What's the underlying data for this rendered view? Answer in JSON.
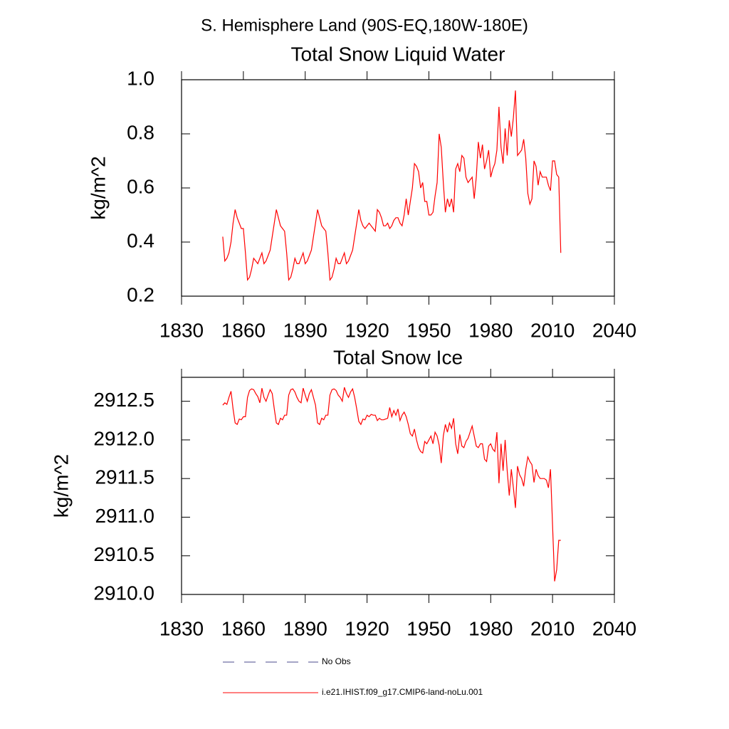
{
  "title": "S. Hemisphere Land (90S-EQ,180W-180E)",
  "chart_data": [
    {
      "type": "line",
      "title": "Total Snow Liquid Water",
      "ylabel": "kg/m^2",
      "color": "#ff0000",
      "x": [
        1850,
        1851,
        1852,
        1853,
        1854,
        1855,
        1856,
        1857,
        1858,
        1859,
        1860,
        1861,
        1862,
        1863,
        1864,
        1865,
        1866,
        1867,
        1868,
        1869,
        1870,
        1871,
        1872,
        1873,
        1874,
        1875,
        1876,
        1877,
        1878,
        1879,
        1880,
        1881,
        1882,
        1883,
        1884,
        1885,
        1886,
        1887,
        1888,
        1889,
        1890,
        1891,
        1892,
        1893,
        1894,
        1895,
        1896,
        1897,
        1898,
        1899,
        1900,
        1901,
        1902,
        1903,
        1904,
        1905,
        1906,
        1907,
        1908,
        1909,
        1910,
        1911,
        1912,
        1913,
        1914,
        1915,
        1916,
        1917,
        1918,
        1919,
        1920,
        1921,
        1922,
        1923,
        1924,
        1925,
        1926,
        1927,
        1928,
        1929,
        1930,
        1931,
        1932,
        1933,
        1934,
        1935,
        1936,
        1937,
        1938,
        1939,
        1940,
        1941,
        1942,
        1943,
        1944,
        1945,
        1946,
        1947,
        1948,
        1949,
        1950,
        1951,
        1952,
        1953,
        1954,
        1955,
        1956,
        1957,
        1958,
        1959,
        1960,
        1961,
        1962,
        1963,
        1964,
        1965,
        1966,
        1967,
        1968,
        1969,
        1970,
        1971,
        1972,
        1973,
        1974,
        1975,
        1976,
        1977,
        1978,
        1979,
        1980,
        1981,
        1982,
        1983,
        1984,
        1985,
        1986,
        1987,
        1988,
        1989,
        1990,
        1991,
        1992,
        1993,
        1994,
        1995,
        1996,
        1997,
        1998,
        1999,
        2000,
        2001,
        2002,
        2003,
        2004,
        2005,
        2006,
        2007,
        2008,
        2009,
        2010,
        2011,
        2012,
        2013,
        2014
      ],
      "values": [
        0.42,
        0.33,
        0.34,
        0.36,
        0.4,
        0.47,
        0.52,
        0.49,
        0.47,
        0.45,
        0.45,
        0.36,
        0.26,
        0.27,
        0.3,
        0.34,
        0.33,
        0.32,
        0.34,
        0.36,
        0.32,
        0.33,
        0.35,
        0.37,
        0.42,
        0.47,
        0.52,
        0.49,
        0.46,
        0.45,
        0.44,
        0.36,
        0.26,
        0.27,
        0.3,
        0.34,
        0.32,
        0.32,
        0.34,
        0.36,
        0.32,
        0.33,
        0.35,
        0.37,
        0.42,
        0.47,
        0.52,
        0.49,
        0.46,
        0.45,
        0.44,
        0.36,
        0.26,
        0.27,
        0.3,
        0.34,
        0.32,
        0.32,
        0.34,
        0.36,
        0.32,
        0.33,
        0.35,
        0.37,
        0.42,
        0.47,
        0.52,
        0.48,
        0.46,
        0.45,
        0.46,
        0.47,
        0.46,
        0.45,
        0.44,
        0.52,
        0.51,
        0.49,
        0.46,
        0.46,
        0.47,
        0.45,
        0.46,
        0.48,
        0.49,
        0.49,
        0.47,
        0.46,
        0.5,
        0.56,
        0.5,
        0.55,
        0.6,
        0.69,
        0.68,
        0.66,
        0.6,
        0.62,
        0.55,
        0.55,
        0.5,
        0.5,
        0.51,
        0.57,
        0.62,
        0.8,
        0.75,
        0.62,
        0.51,
        0.56,
        0.53,
        0.56,
        0.51,
        0.67,
        0.69,
        0.66,
        0.72,
        0.71,
        0.64,
        0.62,
        0.63,
        0.64,
        0.56,
        0.64,
        0.77,
        0.71,
        0.76,
        0.67,
        0.7,
        0.74,
        0.64,
        0.67,
        0.69,
        0.74,
        0.9,
        0.75,
        0.69,
        0.82,
        0.72,
        0.85,
        0.79,
        0.86,
        0.96,
        0.72,
        0.73,
        0.74,
        0.78,
        0.71,
        0.58,
        0.54,
        0.56,
        0.7,
        0.68,
        0.61,
        0.66,
        0.64,
        0.64,
        0.64,
        0.61,
        0.59,
        0.7,
        0.7,
        0.65,
        0.64,
        0.36
      ],
      "xlim": [
        1830,
        2040
      ],
      "xticks": [
        1830,
        1860,
        1890,
        1920,
        1950,
        1980,
        2010,
        2040
      ],
      "ylim": [
        0.2,
        1.0
      ],
      "yticks": [
        0.2,
        0.4,
        0.6,
        0.8,
        {
          "value": 1,
          "label": "1.0"
        }
      ]
    },
    {
      "type": "line",
      "title": "Total Snow Ice",
      "ylabel": "kg/m^2",
      "color": "#ff0000",
      "x": [
        1850,
        1851,
        1852,
        1853,
        1854,
        1855,
        1856,
        1857,
        1858,
        1859,
        1860,
        1861,
        1862,
        1863,
        1864,
        1865,
        1866,
        1867,
        1868,
        1869,
        1870,
        1871,
        1872,
        1873,
        1874,
        1875,
        1876,
        1877,
        1878,
        1879,
        1880,
        1881,
        1882,
        1883,
        1884,
        1885,
        1886,
        1887,
        1888,
        1889,
        1890,
        1891,
        1892,
        1893,
        1894,
        1895,
        1896,
        1897,
        1898,
        1899,
        1900,
        1901,
        1902,
        1903,
        1904,
        1905,
        1906,
        1907,
        1908,
        1909,
        1910,
        1911,
        1912,
        1913,
        1914,
        1915,
        1916,
        1917,
        1918,
        1919,
        1920,
        1921,
        1922,
        1923,
        1924,
        1925,
        1926,
        1927,
        1928,
        1929,
        1930,
        1931,
        1932,
        1933,
        1934,
        1935,
        1936,
        1937,
        1938,
        1939,
        1940,
        1941,
        1942,
        1943,
        1944,
        1945,
        1946,
        1947,
        1948,
        1949,
        1950,
        1951,
        1952,
        1953,
        1954,
        1955,
        1956,
        1957,
        1958,
        1959,
        1960,
        1961,
        1962,
        1963,
        1964,
        1965,
        1966,
        1967,
        1968,
        1969,
        1970,
        1971,
        1972,
        1973,
        1974,
        1975,
        1976,
        1977,
        1978,
        1979,
        1980,
        1981,
        1982,
        1983,
        1984,
        1985,
        1986,
        1987,
        1988,
        1989,
        1990,
        1991,
        1992,
        1993,
        1994,
        1995,
        1996,
        1997,
        1998,
        1999,
        2000,
        2001,
        2002,
        2003,
        2004,
        2005,
        2006,
        2007,
        2008,
        2009,
        2010,
        2011,
        2012,
        2013,
        2014
      ],
      "values": [
        2912.45,
        2912.48,
        2912.46,
        2912.55,
        2912.63,
        2912.4,
        2912.22,
        2912.2,
        2912.27,
        2912.26,
        2912.3,
        2912.3,
        2912.55,
        2912.64,
        2912.66,
        2912.65,
        2912.6,
        2912.56,
        2912.48,
        2912.67,
        2912.55,
        2912.5,
        2912.58,
        2912.65,
        2912.6,
        2912.4,
        2912.22,
        2912.2,
        2912.28,
        2912.26,
        2912.32,
        2912.32,
        2912.58,
        2912.65,
        2912.66,
        2912.62,
        2912.55,
        2912.5,
        2912.48,
        2912.67,
        2912.58,
        2912.5,
        2912.6,
        2912.65,
        2912.55,
        2912.45,
        2912.22,
        2912.2,
        2912.28,
        2912.26,
        2912.32,
        2912.32,
        2912.58,
        2912.65,
        2912.66,
        2912.64,
        2912.58,
        2912.55,
        2912.5,
        2912.68,
        2912.6,
        2912.55,
        2912.62,
        2912.66,
        2912.55,
        2912.4,
        2912.24,
        2912.2,
        2912.27,
        2912.26,
        2912.32,
        2912.3,
        2912.33,
        2912.32,
        2912.32,
        2912.25,
        2912.28,
        2912.26,
        2912.26,
        2912.27,
        2912.28,
        2912.42,
        2912.3,
        2912.38,
        2912.32,
        2912.4,
        2912.25,
        2912.32,
        2912.36,
        2912.3,
        2912.2,
        2912.08,
        2912.05,
        2912.14,
        2912.0,
        2911.9,
        2911.85,
        2911.83,
        2911.98,
        2911.95,
        2912.0,
        2912.05,
        2911.95,
        2912.1,
        2912.05,
        2911.93,
        2911.7,
        2912.05,
        2912.2,
        2912.1,
        2912.22,
        2912.15,
        2912.28,
        2911.95,
        2911.82,
        2912.07,
        2911.92,
        2911.9,
        2911.98,
        2912.02,
        2912.1,
        2912.18,
        2912.05,
        2911.92,
        2911.9,
        2911.95,
        2911.95,
        2911.75,
        2911.72,
        2911.92,
        2911.95,
        2911.88,
        2911.85,
        2912.1,
        2911.44,
        2911.95,
        2911.6,
        2912.0,
        2911.6,
        2911.28,
        2911.62,
        2911.38,
        2911.12,
        2911.66,
        2911.55,
        2911.5,
        2911.4,
        2911.62,
        2911.78,
        2911.72,
        2911.68,
        2911.45,
        2911.62,
        2911.54,
        2911.5,
        2911.5,
        2911.5,
        2911.48,
        2911.38,
        2911.62,
        2910.9,
        2910.17,
        2910.32,
        2910.7,
        2910.7
      ],
      "xlim": [
        1830,
        2040
      ],
      "xticks": [
        1830,
        1860,
        1890,
        1920,
        1950,
        1980,
        2010,
        2040
      ],
      "ylim": [
        2910,
        2912.81
      ],
      "yticks": [
        {
          "value": 2910,
          "label": "2910.0"
        },
        2910.5,
        {
          "value": 2911,
          "label": "2911.0"
        },
        2911.5,
        {
          "value": 2912,
          "label": "2912.0"
        },
        2912.5
      ]
    }
  ],
  "legend": [
    {
      "label": "No Obs",
      "color": "#4b4b8c",
      "dash": true
    },
    {
      "label": "i.e21.IHIST.f09_g17.CMIP6-land-noLu.001",
      "color": "#ff0000",
      "dash": false
    }
  ]
}
